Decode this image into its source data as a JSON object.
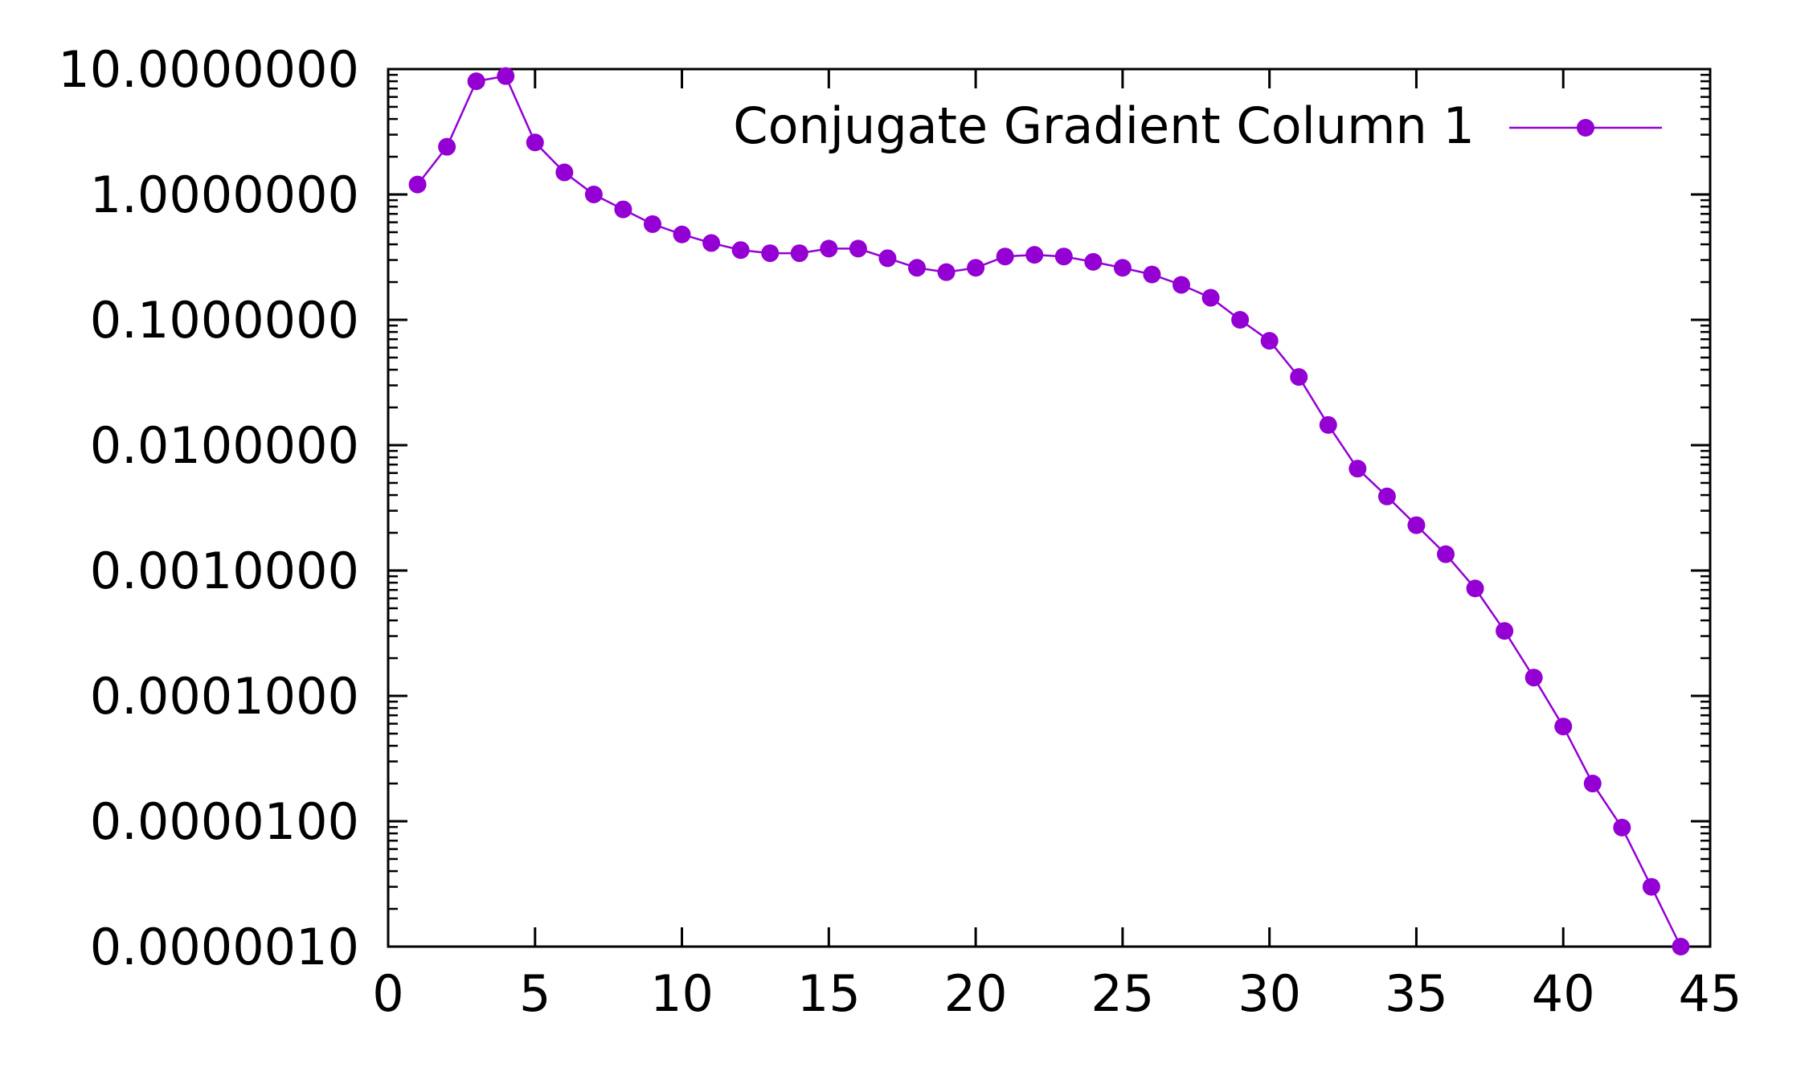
{
  "chart_data": {
    "type": "line",
    "title": "",
    "xlabel": "",
    "ylabel": "",
    "y_scale": "log",
    "xlim": [
      0,
      45
    ],
    "ylim": [
      1e-06,
      10
    ],
    "x_ticks": [
      0,
      5,
      10,
      15,
      20,
      25,
      30,
      35,
      40,
      45
    ],
    "x_tick_labels": [
      "0",
      "5",
      "10",
      "15",
      "20",
      "25",
      "30",
      "35",
      "40",
      "45"
    ],
    "y_ticks": [
      1e-06,
      1e-05,
      0.0001,
      0.001,
      0.01,
      0.1,
      1,
      10
    ],
    "y_tick_labels": [
      "0.0000010",
      "0.0000100",
      "0.0001000",
      "0.0010000",
      "0.0100000",
      "0.1000000",
      "1.0000000",
      "10.0000000"
    ],
    "grid": false,
    "legend_position": "top-right",
    "series": [
      {
        "name": "Conjugate Gradient Column 1",
        "color": "#9400d3",
        "marker": "circle",
        "x": [
          1,
          2,
          3,
          4,
          5,
          6,
          7,
          8,
          9,
          10,
          11,
          12,
          13,
          14,
          15,
          16,
          17,
          18,
          19,
          20,
          21,
          22,
          23,
          24,
          25,
          26,
          27,
          28,
          29,
          30,
          31,
          32,
          33,
          34,
          35,
          36,
          37,
          38,
          39,
          40,
          41,
          42,
          43,
          44
        ],
        "values": [
          1.2,
          2.4,
          8.0,
          8.8,
          2.6,
          1.5,
          1.0,
          0.76,
          0.58,
          0.48,
          0.41,
          0.36,
          0.34,
          0.34,
          0.37,
          0.37,
          0.31,
          0.26,
          0.24,
          0.26,
          0.32,
          0.33,
          0.32,
          0.29,
          0.26,
          0.23,
          0.19,
          0.15,
          0.1,
          0.068,
          0.035,
          0.0145,
          0.0065,
          0.0039,
          0.0023,
          0.00135,
          0.00072,
          0.00033,
          0.00014,
          5.7e-05,
          2e-05,
          8.9e-06,
          3e-06,
          1e-06
        ]
      }
    ]
  }
}
